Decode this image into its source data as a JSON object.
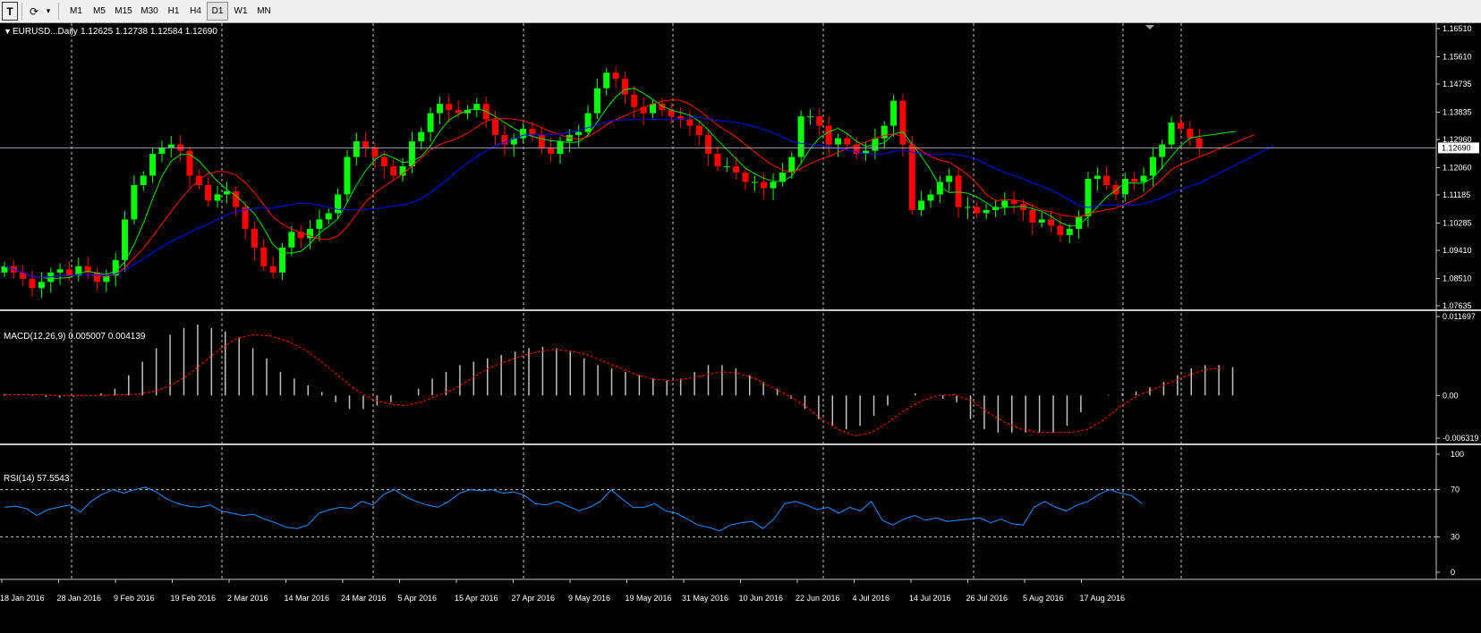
{
  "toolbar": {
    "text_tool_icon": "T",
    "draw_tool_icon": "⟳",
    "dropdown_icon": "▾",
    "timeframes": [
      "M1",
      "M5",
      "M15",
      "M30",
      "H1",
      "H4",
      "D1",
      "W1",
      "MN"
    ],
    "active_timeframe": "D1"
  },
  "main_panel": {
    "header_arrow": "▼",
    "symbol_label": "EURUSD...Daily",
    "ohlc_label": "1.12625 1.12738 1.12584 1.12690",
    "price_ticks": [
      "1.16510",
      "1.15610",
      "1.14735",
      "1.13835",
      "1.12960",
      "1.12060",
      "1.11185",
      "1.10285",
      "1.09410",
      "1.08510",
      "1.07635"
    ],
    "current_price": "1.12690"
  },
  "macd_panel": {
    "label": "MACD(12,26,9) 0.005007 0.004139",
    "ticks": [
      "0.011697",
      "0.00",
      "-0.006319"
    ]
  },
  "rsi_panel": {
    "label": "RSI(14) 57.5543",
    "ticks": [
      "100",
      "70",
      "30",
      "0"
    ]
  },
  "x_axis": {
    "date_labels": [
      "18 Jan 2016",
      "28 Jan 2016",
      "9 Feb 2016",
      "19 Feb 2016",
      "2 Mar 2016",
      "14 Mar 2016",
      "24 Mar 2016",
      "5 Apr 2016",
      "15 Apr 2016",
      "27 Apr 2016",
      "9 May 2016",
      "19 May 2016",
      "31 May 2016",
      "10 Jun 2016",
      "22 Jun 2016",
      "4 Jul 2016",
      "14 Jul 2016",
      "26 Jul 2016",
      "5 Aug 2016",
      "17 Aug 2016"
    ]
  },
  "colors": {
    "bull": "#00ff00",
    "bear": "#ff0000",
    "ma_fast": "#00e000",
    "ma_mid": "#ff0000",
    "ma_slow": "#0000ff",
    "macd_hist": "#c0c0c0",
    "macd_signal": "#ff0000",
    "rsi_line": "#1e90ff",
    "grid": "#c8c8c8"
  },
  "chart_data": [
    {
      "type": "candlestick",
      "title": "EURUSD...Daily",
      "ylim": [
        1.07635,
        1.1651
      ],
      "close_series_approx": [
        1.089,
        1.087,
        1.085,
        1.082,
        1.084,
        1.087,
        1.088,
        1.086,
        1.089,
        1.087,
        1.084,
        1.086,
        1.091,
        1.104,
        1.115,
        1.118,
        1.125,
        1.127,
        1.128,
        1.126,
        1.118,
        1.115,
        1.11,
        1.112,
        1.113,
        1.108,
        1.101,
        1.095,
        1.089,
        1.087,
        1.095,
        1.1,
        1.098,
        1.101,
        1.104,
        1.106,
        1.112,
        1.124,
        1.129,
        1.127,
        1.124,
        1.121,
        1.118,
        1.121,
        1.129,
        1.132,
        1.138,
        1.141,
        1.139,
        1.138,
        1.139,
        1.141,
        1.136,
        1.131,
        1.128,
        1.13,
        1.133,
        1.131,
        1.127,
        1.125,
        1.129,
        1.131,
        1.132,
        1.138,
        1.146,
        1.151,
        1.149,
        1.144,
        1.14,
        1.138,
        1.141,
        1.139,
        1.137,
        1.136,
        1.134,
        1.131,
        1.125,
        1.121,
        1.121,
        1.119,
        1.116,
        1.116,
        1.114,
        1.116,
        1.119,
        1.124,
        1.137,
        1.137,
        1.134,
        1.128,
        1.13,
        1.128,
        1.125,
        1.126,
        1.13,
        1.134,
        1.142,
        1.128,
        1.107,
        1.11,
        1.112,
        1.116,
        1.118,
        1.108,
        1.108,
        1.106,
        1.107,
        1.108,
        1.11,
        1.109,
        1.107,
        1.103,
        1.104,
        1.102,
        1.099,
        1.101,
        1.105,
        1.117,
        1.118,
        1.115,
        1.112,
        1.117,
        1.116,
        1.118,
        1.124,
        1.128,
        1.135,
        1.133,
        1.13,
        1.127
      ]
    },
    {
      "type": "line",
      "title": "MACD(12,26,9)",
      "ylim": [
        -0.006319,
        0.011697
      ],
      "series": [
        {
          "name": "MACD",
          "values": [
            0.0002,
            0.0002,
            0.0001,
            -0.0002,
            -0.0003,
            -0.0002,
            0.0,
            0.0003,
            0.001,
            0.003,
            0.005,
            0.007,
            0.009,
            0.01,
            0.0105,
            0.01,
            0.0095,
            0.0085,
            0.007,
            0.0055,
            0.0035,
            0.0025,
            0.0015,
            0.0005,
            -0.001,
            -0.002,
            -0.002,
            -0.0015,
            -0.001,
            0.0,
            0.001,
            0.0025,
            0.0035,
            0.0045,
            0.005,
            0.0055,
            0.006,
            0.0065,
            0.007,
            0.0072,
            0.007,
            0.0065,
            0.0055,
            0.0045,
            0.004,
            0.0035,
            0.003,
            0.0025,
            0.0022,
            0.0025,
            0.0035,
            0.0045,
            0.0045,
            0.004,
            0.003,
            0.002,
            0.001,
            -0.0005,
            -0.002,
            -0.0035,
            -0.0045,
            -0.005,
            -0.0045,
            -0.003,
            -0.0015,
            0.0,
            0.0003,
            0.0,
            -0.0005,
            -0.001,
            -0.0035,
            -0.005,
            -0.0055,
            -0.0055,
            -0.0055,
            -0.0055,
            -0.0055,
            -0.0045,
            -0.0025,
            0.0,
            0.0001,
            0.0003,
            0.0006,
            0.0012,
            0.002,
            0.003,
            0.004,
            0.0045,
            0.0045,
            0.0042
          ]
        },
        {
          "name": "Signal",
          "values": [
            0.0001,
            0.0001,
            0.0001,
            0.0,
            0.0,
            0.0,
            0.0,
            0.0001,
            0.0002,
            0.0006,
            0.0015,
            0.003,
            0.005,
            0.007,
            0.0085,
            0.009,
            0.0088,
            0.008,
            0.0068,
            0.005,
            0.003,
            0.001,
            -0.0005,
            -0.0012,
            -0.0015,
            -0.001,
            0.0,
            0.001,
            0.0025,
            0.004,
            0.005,
            0.0058,
            0.0065,
            0.0068,
            0.0066,
            0.006,
            0.005,
            0.004,
            0.003,
            0.0024,
            0.0022,
            0.0025,
            0.003,
            0.0035,
            0.0033,
            0.0025,
            0.0012,
            0.0,
            -0.0015,
            -0.0035,
            -0.005,
            -0.006,
            -0.0055,
            -0.004,
            -0.0022,
            -0.0008,
            0.0,
            0.0001,
            -0.0008,
            -0.0025,
            -0.004,
            -0.005,
            -0.0055,
            -0.0055,
            -0.0055,
            -0.005,
            -0.0035,
            -0.0015,
            0.0,
            0.001,
            0.002,
            0.003,
            0.0038,
            0.0041
          ]
        }
      ]
    },
    {
      "type": "line",
      "title": "RSI(14)",
      "ylim": [
        0,
        100
      ],
      "series": [
        {
          "name": "RSI(14)",
          "values": [
            55,
            56,
            54,
            48,
            53,
            55,
            57,
            51,
            60,
            66,
            70,
            67,
            70,
            72,
            68,
            62,
            58,
            56,
            55,
            57,
            52,
            50,
            48,
            49,
            45,
            42,
            38,
            37,
            40,
            50,
            53,
            55,
            54,
            60,
            57,
            66,
            70,
            64,
            60,
            57,
            55,
            60,
            67,
            70,
            69,
            70,
            67,
            68,
            65,
            58,
            57,
            60,
            56,
            52,
            55,
            60,
            70,
            62,
            55,
            55,
            58,
            52,
            50,
            45,
            40,
            38,
            35,
            40,
            42,
            43,
            37,
            45,
            58,
            60,
            57,
            53,
            55,
            50,
            55,
            52,
            60,
            44,
            40,
            45,
            48,
            44,
            46,
            43,
            44,
            45,
            46,
            42,
            45,
            41,
            40,
            55,
            60,
            55,
            52,
            57,
            60,
            66,
            70,
            67,
            65,
            58
          ]
        }
      ]
    }
  ]
}
